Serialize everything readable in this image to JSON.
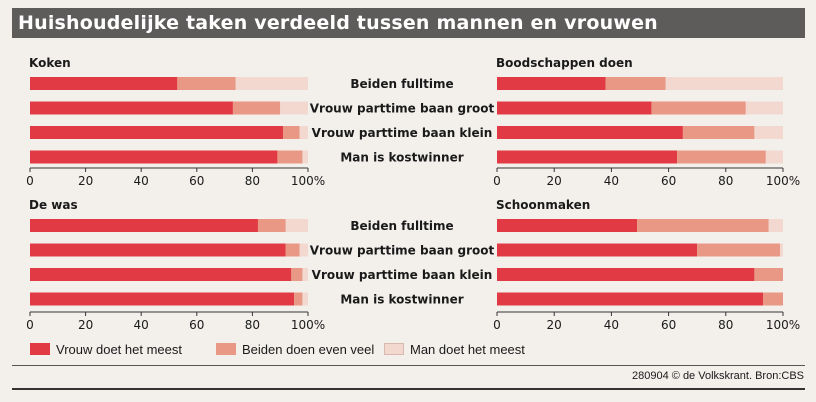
{
  "title": "Huishoudelijke taken verdeeld tussen mannen en vrouwen",
  "source": "280904 © de Volkskrant. Bron:CBS",
  "colors": {
    "vrouw": "#e23a45",
    "beiden": "#e89884",
    "man": "#f2d8cf"
  },
  "legend": [
    {
      "label": "Vrouw doet het meest",
      "color": "#e23a45"
    },
    {
      "label": "Beiden doen even veel",
      "color": "#e89884"
    },
    {
      "label": "Man doet het meest",
      "color": "#f2d8cf"
    }
  ],
  "categories": [
    "Beiden fulltime",
    "Vrouw parttime baan groot",
    "Vrouw parttime baan klein",
    "Man is kostwinner"
  ],
  "x_ticks": [
    "0",
    "20",
    "40",
    "60",
    "80",
    "100%"
  ],
  "chart_data": [
    {
      "type": "bar",
      "title": "Koken",
      "categories": [
        "Beiden fulltime",
        "Vrouw parttime baan groot",
        "Vrouw parttime baan klein",
        "Man is kostwinner"
      ],
      "xlim": [
        0,
        100
      ],
      "series": [
        {
          "name": "Vrouw doet het meest",
          "values": [
            53,
            73,
            91,
            89
          ]
        },
        {
          "name": "Beiden doen even veel",
          "values": [
            21,
            17,
            6,
            9
          ]
        },
        {
          "name": "Man doet het meest",
          "values": [
            26,
            10,
            3,
            2
          ]
        }
      ]
    },
    {
      "type": "bar",
      "title": "Boodschappen doen",
      "categories": [
        "Beiden fulltime",
        "Vrouw parttime baan groot",
        "Vrouw parttime baan klein",
        "Man is kostwinner"
      ],
      "xlim": [
        0,
        100
      ],
      "series": [
        {
          "name": "Vrouw doet het meest",
          "values": [
            38,
            54,
            65,
            63
          ]
        },
        {
          "name": "Beiden doen even veel",
          "values": [
            21,
            33,
            25,
            31
          ]
        },
        {
          "name": "Man doet het meest",
          "values": [
            41,
            13,
            10,
            6
          ]
        }
      ]
    },
    {
      "type": "bar",
      "title": "De was",
      "categories": [
        "Beiden fulltime",
        "Vrouw parttime baan groot",
        "Vrouw parttime baan klein",
        "Man is kostwinner"
      ],
      "xlim": [
        0,
        100
      ],
      "series": [
        {
          "name": "Vrouw doet het meest",
          "values": [
            82,
            92,
            94,
            95
          ]
        },
        {
          "name": "Beiden doen even veel",
          "values": [
            10,
            5,
            4,
            3
          ]
        },
        {
          "name": "Man doet het meest",
          "values": [
            8,
            3,
            2,
            2
          ]
        }
      ]
    },
    {
      "type": "bar",
      "title": "Schoonmaken",
      "categories": [
        "Beiden fulltime",
        "Vrouw parttime baan groot",
        "Vrouw parttime baan klein",
        "Man is kostwinner"
      ],
      "xlim": [
        0,
        100
      ],
      "series": [
        {
          "name": "Vrouw doet het meest",
          "values": [
            49,
            70,
            90,
            93
          ]
        },
        {
          "name": "Beiden doen even veel",
          "values": [
            46,
            29,
            10,
            7
          ]
        },
        {
          "name": "Man doet het meest",
          "values": [
            5,
            1,
            0,
            0
          ]
        }
      ]
    }
  ]
}
